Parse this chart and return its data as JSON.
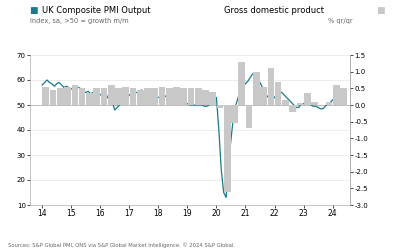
{
  "title_left": "UK Composite PMI Output",
  "title_right": "Gross domestic product",
  "subtitle_left": "Index, sa, >50 = growth m/m",
  "subtitle_right": "% qr/qr",
  "source": "Sources: S&P Global PMI, ONS via S&P Global Market Intelligence. © 2024 S&P Global.",
  "xlim": [
    13.58,
    24.6
  ],
  "ylim_left": [
    10,
    70
  ],
  "ylim_right": [
    -3.0,
    1.5
  ],
  "yticks_left": [
    10,
    20,
    30,
    40,
    50,
    60,
    70
  ],
  "yticks_right": [
    -3.0,
    -2.5,
    -2.0,
    -1.5,
    -1.0,
    -0.5,
    0.0,
    0.5,
    1.0,
    1.5
  ],
  "xticks": [
    14,
    15,
    16,
    17,
    18,
    19,
    20,
    21,
    22,
    23,
    24
  ],
  "line_color": "#1a7a8a",
  "bar_color": "#c8c8c8",
  "hline_color": "#aaaaaa",
  "background_color": "#ffffff",
  "title_color": "#000000",
  "subtitle_color": "#666666",
  "source_color": "#666666",
  "pmi_x": [
    14.0,
    14.083,
    14.167,
    14.25,
    14.333,
    14.417,
    14.5,
    14.583,
    14.667,
    14.75,
    14.833,
    14.917,
    15.0,
    15.083,
    15.167,
    15.25,
    15.333,
    15.417,
    15.5,
    15.583,
    15.667,
    15.75,
    15.833,
    15.917,
    16.0,
    16.083,
    16.167,
    16.25,
    16.333,
    16.417,
    16.5,
    16.583,
    16.667,
    16.75,
    16.833,
    16.917,
    17.0,
    17.083,
    17.167,
    17.25,
    17.333,
    17.417,
    17.5,
    17.583,
    17.667,
    17.75,
    17.833,
    17.917,
    18.0,
    18.083,
    18.167,
    18.25,
    18.333,
    18.417,
    18.5,
    18.583,
    18.667,
    18.75,
    18.833,
    18.917,
    19.0,
    19.083,
    19.167,
    19.25,
    19.333,
    19.417,
    19.5,
    19.583,
    19.667,
    19.75,
    19.833,
    19.917,
    20.0,
    20.083,
    20.167,
    20.25,
    20.333,
    20.417,
    20.5,
    20.583,
    20.667,
    20.75,
    20.833,
    20.917,
    21.0,
    21.083,
    21.167,
    21.25,
    21.333,
    21.417,
    21.5,
    21.583,
    21.667,
    21.75,
    21.833,
    21.917,
    22.0,
    22.083,
    22.167,
    22.25,
    22.333,
    22.417,
    22.5,
    22.583,
    22.667,
    22.75,
    22.833,
    22.917,
    23.0,
    23.083,
    23.167,
    23.25,
    23.333,
    23.417,
    23.5,
    23.583,
    23.667,
    23.75,
    23.833,
    23.917,
    24.0,
    24.083,
    24.167,
    24.25,
    24.333
  ],
  "pmi_y": [
    58.0,
    59.0,
    60.0,
    59.0,
    58.5,
    57.5,
    58.5,
    59.0,
    58.0,
    57.0,
    57.5,
    57.0,
    56.5,
    56.0,
    57.0,
    57.0,
    56.5,
    55.5,
    55.0,
    55.5,
    54.5,
    55.0,
    54.5,
    54.0,
    54.0,
    55.0,
    55.5,
    53.0,
    52.0,
    51.0,
    48.0,
    49.0,
    50.0,
    51.5,
    52.0,
    52.5,
    54.0,
    54.5,
    54.5,
    55.0,
    55.5,
    56.0,
    55.5,
    55.0,
    54.5,
    53.5,
    52.5,
    52.5,
    53.0,
    53.5,
    54.0,
    53.5,
    53.0,
    54.0,
    54.0,
    53.5,
    53.0,
    52.5,
    51.5,
    51.0,
    50.5,
    50.0,
    50.0,
    50.0,
    50.0,
    50.0,
    50.0,
    49.5,
    49.5,
    50.0,
    51.0,
    53.0,
    53.0,
    40.0,
    24.0,
    15.0,
    13.0,
    27.0,
    36.0,
    45.0,
    50.0,
    53.0,
    56.0,
    57.5,
    58.5,
    59.5,
    61.0,
    62.5,
    63.0,
    61.0,
    59.0,
    57.0,
    55.0,
    53.5,
    52.5,
    52.0,
    53.0,
    54.5,
    55.5,
    55.0,
    54.0,
    53.0,
    52.0,
    51.0,
    50.0,
    49.0,
    49.0,
    50.5,
    50.5,
    51.0,
    51.0,
    50.0,
    49.5,
    49.5,
    49.0,
    48.5,
    48.5,
    49.5,
    50.5,
    51.0,
    52.0,
    53.0,
    53.5,
    52.5,
    52.4
  ],
  "gdp_quarters": [
    14.125,
    14.375,
    14.625,
    14.875,
    15.125,
    15.375,
    15.625,
    15.875,
    16.125,
    16.375,
    16.625,
    16.875,
    17.125,
    17.375,
    17.625,
    17.875,
    18.125,
    18.375,
    18.625,
    18.875,
    19.125,
    19.375,
    19.625,
    19.875,
    20.125,
    20.375,
    20.625,
    20.875,
    21.125,
    21.375,
    21.625,
    21.875,
    22.125,
    22.375,
    22.625,
    22.875,
    23.125,
    23.375,
    23.625,
    23.875,
    24.125,
    24.375
  ],
  "gdp_values": [
    0.55,
    0.45,
    0.5,
    0.55,
    0.6,
    0.5,
    0.35,
    0.5,
    0.5,
    0.6,
    0.5,
    0.55,
    0.5,
    0.45,
    0.5,
    0.5,
    0.55,
    0.5,
    0.55,
    0.5,
    0.5,
    0.5,
    0.45,
    0.4,
    -0.1,
    -2.6,
    -0.55,
    1.3,
    -0.7,
    1.0,
    0.55,
    1.1,
    0.7,
    0.15,
    -0.2,
    0.05,
    0.35,
    0.1,
    0.0,
    0.1,
    0.6,
    0.5
  ]
}
